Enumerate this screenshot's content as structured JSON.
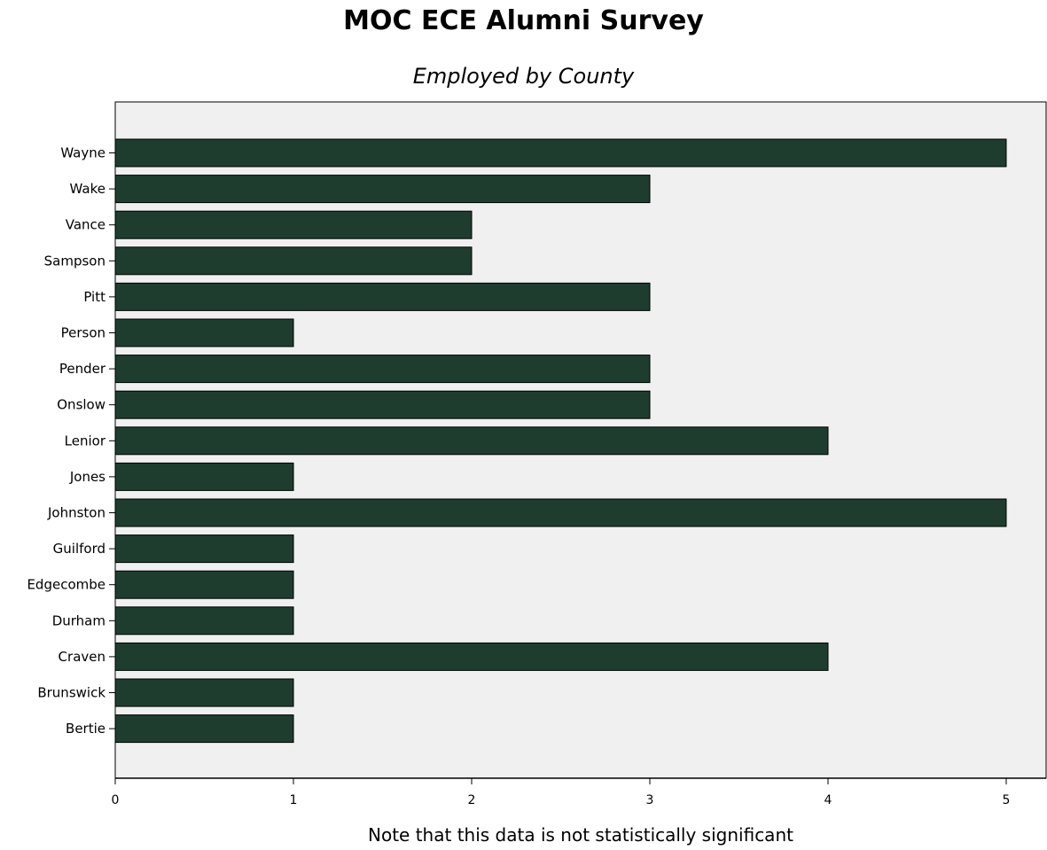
{
  "chart_data": {
    "type": "bar",
    "orientation": "horizontal",
    "title": "MOC ECE Alumni Survey",
    "subtitle": "Employed by County",
    "xlabel": "Note that this data is not statistically significant",
    "ylabel": "",
    "categories": [
      "Wayne",
      "Wake",
      "Vance",
      "Sampson",
      "Pitt",
      "Person",
      "Pender",
      "Onslow",
      "Lenior",
      "Jones",
      "Johnston",
      "Guilford",
      "Edgecombe",
      "Durham",
      "Craven",
      "Brunswick",
      "Bertie"
    ],
    "values": [
      5,
      3,
      2,
      2,
      3,
      1,
      3,
      3,
      4,
      1,
      5,
      1,
      1,
      1,
      4,
      1,
      1
    ],
    "xlim": [
      0,
      5.2
    ],
    "xticks": [
      "0",
      "1",
      "2",
      "3",
      "4",
      "5"
    ],
    "grid": false,
    "bar_color": "#1e3d2f",
    "plot_background": "#f0f0f0"
  }
}
